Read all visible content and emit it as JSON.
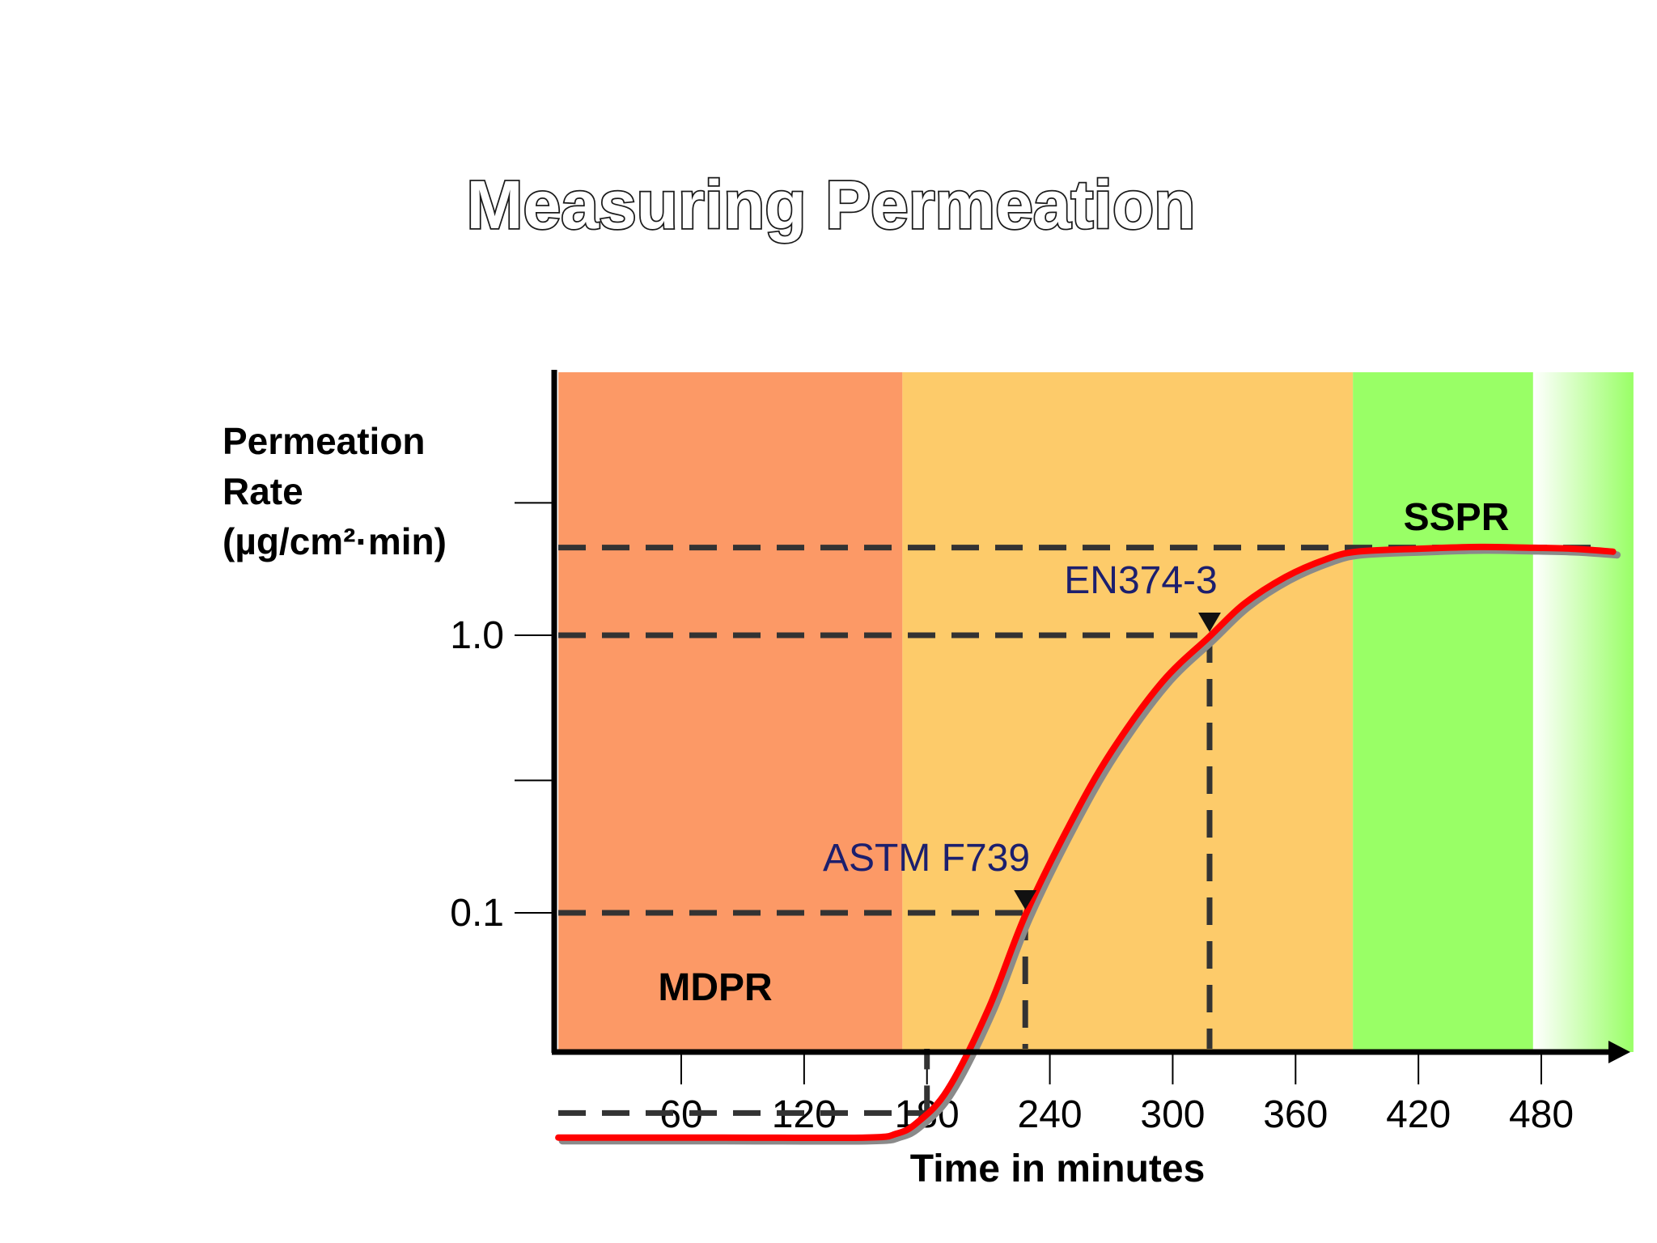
{
  "colors": {
    "zone_early": "#fc9966",
    "zone_mid": "#fdcb6a",
    "zone_steady": "#99ff66",
    "curve": "#ff0000",
    "curve_shadow": "#8a8a8a",
    "guide_lines": "#333333",
    "standard_label": "#1c1f6e"
  },
  "chart_data": {
    "type": "line",
    "title": "Measuring Permeation",
    "ylabel_lines": [
      "Permeation",
      "Rate",
      "(µg/cm²·min)"
    ],
    "xlabel": "Time in minutes",
    "x_ticks": [
      60,
      120,
      180,
      240,
      300,
      360,
      420,
      480
    ],
    "x_range": [
      0,
      525
    ],
    "y_scale": "log",
    "y_range": [
      0.0126,
      11.0
    ],
    "y_ticks": [
      {
        "value": 0.1,
        "label": "0.1"
      },
      {
        "value": 0.3,
        "label": ""
      },
      {
        "value": 1.0,
        "label": "1.0"
      },
      {
        "value": 3.0,
        "label": ""
      }
    ],
    "grid": false,
    "legend": "none",
    "zones": [
      {
        "x0": 0,
        "x1": 168,
        "color_key": "zone_early"
      },
      {
        "x0": 168,
        "x1": 388,
        "color_key": "zone_mid"
      },
      {
        "x0": 388,
        "x1": 476,
        "color_key": "zone_steady"
      },
      {
        "x0": 476,
        "x1": 525,
        "color_key": "zone_steady",
        "fade": true
      }
    ],
    "series": [
      {
        "x": [
          0,
          80,
          150,
          165,
          175,
          190,
          210,
          228,
          250,
          270,
          295,
          318,
          335,
          355,
          375,
          390,
          420,
          450,
          470,
          495,
          515
        ],
        "y": [
          0.0155,
          0.0155,
          0.0155,
          0.016,
          0.0175,
          0.023,
          0.045,
          0.098,
          0.21,
          0.38,
          0.68,
          0.99,
          1.3,
          1.62,
          1.88,
          2.0,
          2.05,
          2.08,
          2.07,
          2.05,
          2.0
        ]
      }
    ],
    "reference_levels": [
      {
        "name": "MDPR",
        "y": 0.019,
        "x_end": 180
      },
      {
        "name": "ASTM F739",
        "y": 0.1,
        "x_end": 228
      },
      {
        "name": "EN374-3",
        "y": 1.0,
        "x_end": 318
      },
      {
        "name": "SSPR",
        "y": 2.07,
        "x_end": 510
      }
    ]
  }
}
